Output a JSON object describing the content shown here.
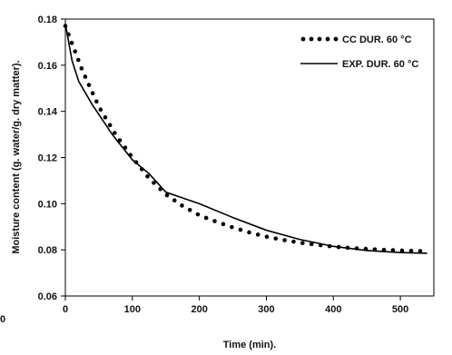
{
  "chart_data": {
    "type": "line",
    "title": "",
    "xlabel": "Time (min).",
    "ylabel": "Moisture content (g. water/g. dry matter).",
    "xlim": [
      0,
      550
    ],
    "ylim": [
      0.06,
      0.18
    ],
    "xticks": [
      0,
      100,
      200,
      300,
      400,
      500
    ],
    "yticks": [
      0.06,
      0.08,
      0.1,
      0.12,
      0.14,
      0.16,
      0.18
    ],
    "xtick_labels": [
      "0",
      "100",
      "200",
      "300",
      "400",
      "500"
    ],
    "ytick_labels": [
      "0.06",
      "0.08",
      "0.10",
      "0.12",
      "0.14",
      "0.16",
      "0.18"
    ],
    "grid": false,
    "legend_position": "top-right",
    "series": [
      {
        "name": "CC DUR. 60 °C",
        "style": "dotted",
        "color": "#000000",
        "x": [
          0,
          25,
          50,
          75,
          100,
          125,
          150,
          175,
          200,
          225,
          250,
          275,
          300,
          325,
          350,
          375,
          400,
          425,
          450,
          475,
          500,
          525,
          540
        ],
        "y": [
          0.177,
          0.158,
          0.142,
          0.13,
          0.12,
          0.111,
          0.104,
          0.099,
          0.095,
          0.0922,
          0.0897,
          0.0875,
          0.0857,
          0.0843,
          0.0831,
          0.0822,
          0.0814,
          0.0808,
          0.0804,
          0.08,
          0.0797,
          0.0795,
          0.0794
        ]
      },
      {
        "name": "EXP. DUR. 60 °C",
        "style": "solid",
        "color": "#000000",
        "x": [
          0,
          5,
          10,
          20,
          40,
          70,
          100,
          125,
          150,
          200,
          250,
          300,
          350,
          400,
          450,
          500,
          540
        ],
        "y": [
          0.178,
          0.17,
          0.162,
          0.153,
          0.143,
          0.13,
          0.119,
          0.113,
          0.105,
          0.1,
          0.094,
          0.0885,
          0.0845,
          0.0815,
          0.0797,
          0.0788,
          0.0785
        ]
      }
    ]
  },
  "edge_label": "0"
}
